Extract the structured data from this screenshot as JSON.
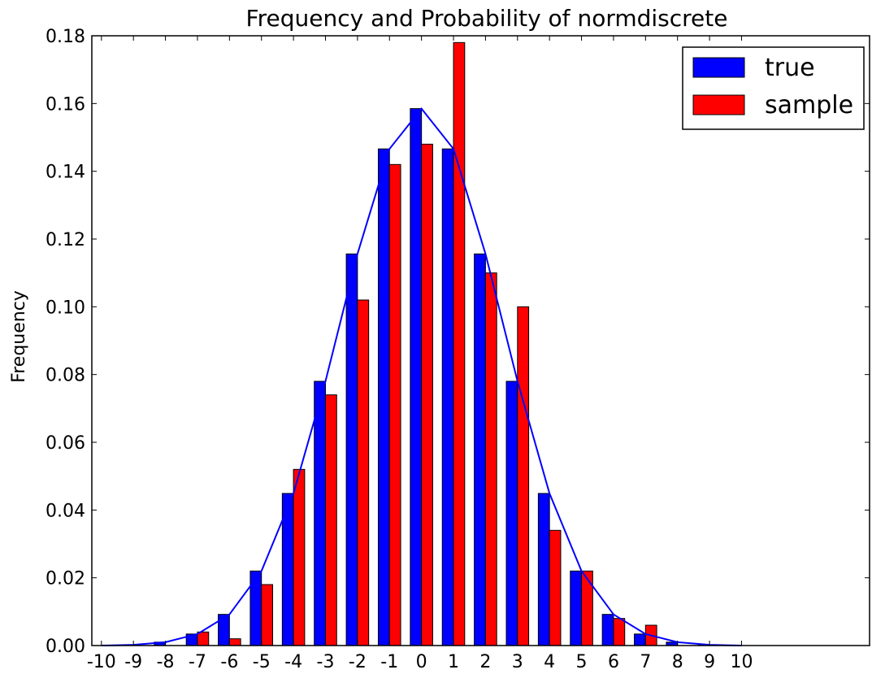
{
  "chart_data": {
    "type": "bar",
    "title": "Frequency and Probability of normdiscrete",
    "xlabel": "",
    "ylabel": "Frequency",
    "categories": [
      "-10",
      "-9",
      "-8",
      "-7",
      "-6",
      "-5",
      "-4",
      "-3",
      "-2",
      "-1",
      "0",
      "1",
      "2",
      "3",
      "4",
      "5",
      "6",
      "7",
      "8",
      "9",
      "10"
    ],
    "x_values": [
      -10,
      -9,
      -8,
      -7,
      -6,
      -5,
      -4,
      -3,
      -2,
      -1,
      0,
      1,
      2,
      3,
      4,
      5,
      6,
      7,
      8,
      9,
      10
    ],
    "xlim": [
      -10.3,
      14
    ],
    "ylim": [
      0,
      0.18
    ],
    "yticks": [
      "0.00",
      "0.02",
      "0.04",
      "0.06",
      "0.08",
      "0.10",
      "0.12",
      "0.14",
      "0.16",
      "0.18"
    ],
    "ytick_values": [
      0.0,
      0.02,
      0.04,
      0.06,
      0.08,
      0.1,
      0.12,
      0.14,
      0.16,
      0.18
    ],
    "grid": false,
    "legend_placement": "upper right",
    "series": [
      {
        "name": "true",
        "color": "#0000ff",
        "values": [
          0.0,
          0.0002,
          0.001,
          0.0034,
          0.0092,
          0.022,
          0.0449,
          0.078,
          0.1156,
          0.1466,
          0.1585,
          0.1466,
          0.1156,
          0.078,
          0.0449,
          0.022,
          0.0092,
          0.0034,
          0.001,
          0.0002,
          0.0
        ]
      },
      {
        "name": "sample",
        "color": "#ff0000",
        "values": [
          0.0,
          0.0,
          0.0,
          0.004,
          0.002,
          0.018,
          0.052,
          0.074,
          0.102,
          0.142,
          0.148,
          0.178,
          0.11,
          0.1,
          0.034,
          0.022,
          0.008,
          0.006,
          0.0,
          0.0,
          0.0
        ]
      }
    ],
    "line": {
      "series_ref": "true",
      "color": "#0000ff"
    }
  }
}
